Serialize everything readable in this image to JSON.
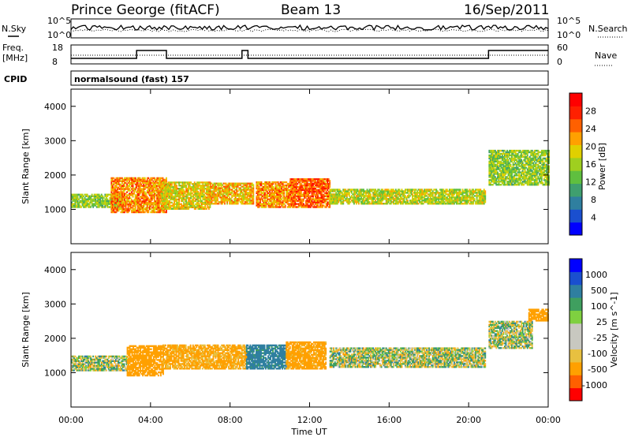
{
  "header": {
    "radar": "Prince George (fitACF)",
    "beam": "Beam 13",
    "date": "16/Sep/2011"
  },
  "strips": {
    "nsky_label": "N.Sky",
    "nsearch_label": "N.Search",
    "freq_label_1": "Freq.",
    "freq_label_2": "[MHz]",
    "nave_label": "Nave",
    "cpid_label": "CPID",
    "cpid_value": "normalsound (fast) 157",
    "noise_ticks_left": [
      "10^5",
      "10^0"
    ],
    "noise_ticks_right": [
      "10^5",
      "10^0"
    ],
    "freq_ticks": [
      "18",
      "8"
    ],
    "nave_ticks": [
      "60",
      "0"
    ]
  },
  "colors": {
    "power_scale": [
      "#0000ff",
      "#1a4fcf",
      "#2f7f9f",
      "#3f9f6f",
      "#5fbf3f",
      "#9fcf1f",
      "#e0d000",
      "#ffa000",
      "#ff6000",
      "#ff2000",
      "#ff0000"
    ],
    "velocity_scale": [
      "#ff0000",
      "#ff6000",
      "#ffa000",
      "#e8c040",
      "#c8c8c0",
      "#c8c8c0",
      "#7fd040",
      "#3f9f5f",
      "#2f7fa0",
      "#1a4fcf",
      "#0000ff"
    ],
    "ground_scatter": "#c8c8c0"
  },
  "chart_data": [
    {
      "type": "heatmap",
      "panel": "power",
      "xlabel": "",
      "ylabel": "Slant Range [km]",
      "xlim_hours": [
        0,
        24
      ],
      "ylim": [
        0,
        4500
      ],
      "ytick_labels": [
        "1000",
        "2000",
        "3000",
        "4000"
      ],
      "colorbar_label": "Power [dB]",
      "colorbar_ticks": [
        "4",
        "8",
        "12",
        "16",
        "20",
        "24",
        "28"
      ],
      "colorbar_range": [
        0,
        30
      ],
      "regions": [
        {
          "t0": 0.0,
          "t1": 2.6,
          "r0": 1050,
          "r1": 1450,
          "v": 14
        },
        {
          "t0": 2.0,
          "t1": 4.8,
          "r0": 900,
          "r1": 1900,
          "v": 22
        },
        {
          "t0": 4.5,
          "t1": 7.0,
          "r0": 1000,
          "r1": 1800,
          "v": 18
        },
        {
          "t0": 6.8,
          "t1": 9.2,
          "r0": 1150,
          "r1": 1750,
          "v": 20
        },
        {
          "t0": 9.3,
          "t1": 11.2,
          "r0": 1050,
          "r1": 1800,
          "v": 22
        },
        {
          "t0": 11.0,
          "t1": 13.0,
          "r0": 1050,
          "r1": 1900,
          "v": 24
        },
        {
          "t0": 13.0,
          "t1": 20.8,
          "r0": 1150,
          "r1": 1600,
          "v": 16
        },
        {
          "t0": 21.0,
          "t1": 24.0,
          "r0": 1700,
          "r1": 2700,
          "v": 14
        }
      ]
    },
    {
      "type": "heatmap",
      "panel": "velocity",
      "xlabel": "Time UT",
      "ylabel": "Slant Range [km]",
      "xlim_hours": [
        0,
        24
      ],
      "xtick_labels": [
        "00:00",
        "04:00",
        "08:00",
        "12:00",
        "16:00",
        "20:00",
        "00:00"
      ],
      "ylim": [
        0,
        4500
      ],
      "ytick_labels": [
        "1000",
        "2000",
        "3000",
        "4000"
      ],
      "colorbar_label": "Velocity [m s^-1]",
      "colorbar_ticks": [
        "-1000",
        "-500",
        "-100",
        "-25",
        "25",
        "100",
        "500",
        "1000"
      ],
      "regions": [
        {
          "t0": 0.0,
          "t1": 2.8,
          "r0": 1050,
          "r1": 1500,
          "v": 0
        },
        {
          "t0": 2.8,
          "t1": 4.6,
          "r0": 900,
          "r1": 1800,
          "v": -300
        },
        {
          "t0": 4.6,
          "t1": 8.8,
          "r0": 1100,
          "r1": 1800,
          "v": -150
        },
        {
          "t0": 8.8,
          "t1": 10.8,
          "r0": 1100,
          "r1": 1800,
          "v": 200
        },
        {
          "t0": 10.8,
          "t1": 12.8,
          "r0": 1100,
          "r1": 1900,
          "v": -200
        },
        {
          "t0": 13.0,
          "t1": 20.8,
          "r0": 1150,
          "r1": 1700,
          "v": 0
        },
        {
          "t0": 21.0,
          "t1": 23.2,
          "r0": 1700,
          "r1": 2500,
          "v": 0
        },
        {
          "t0": 23.0,
          "t1": 24.0,
          "r0": 2500,
          "r1": 2850,
          "v": -300
        }
      ]
    }
  ]
}
